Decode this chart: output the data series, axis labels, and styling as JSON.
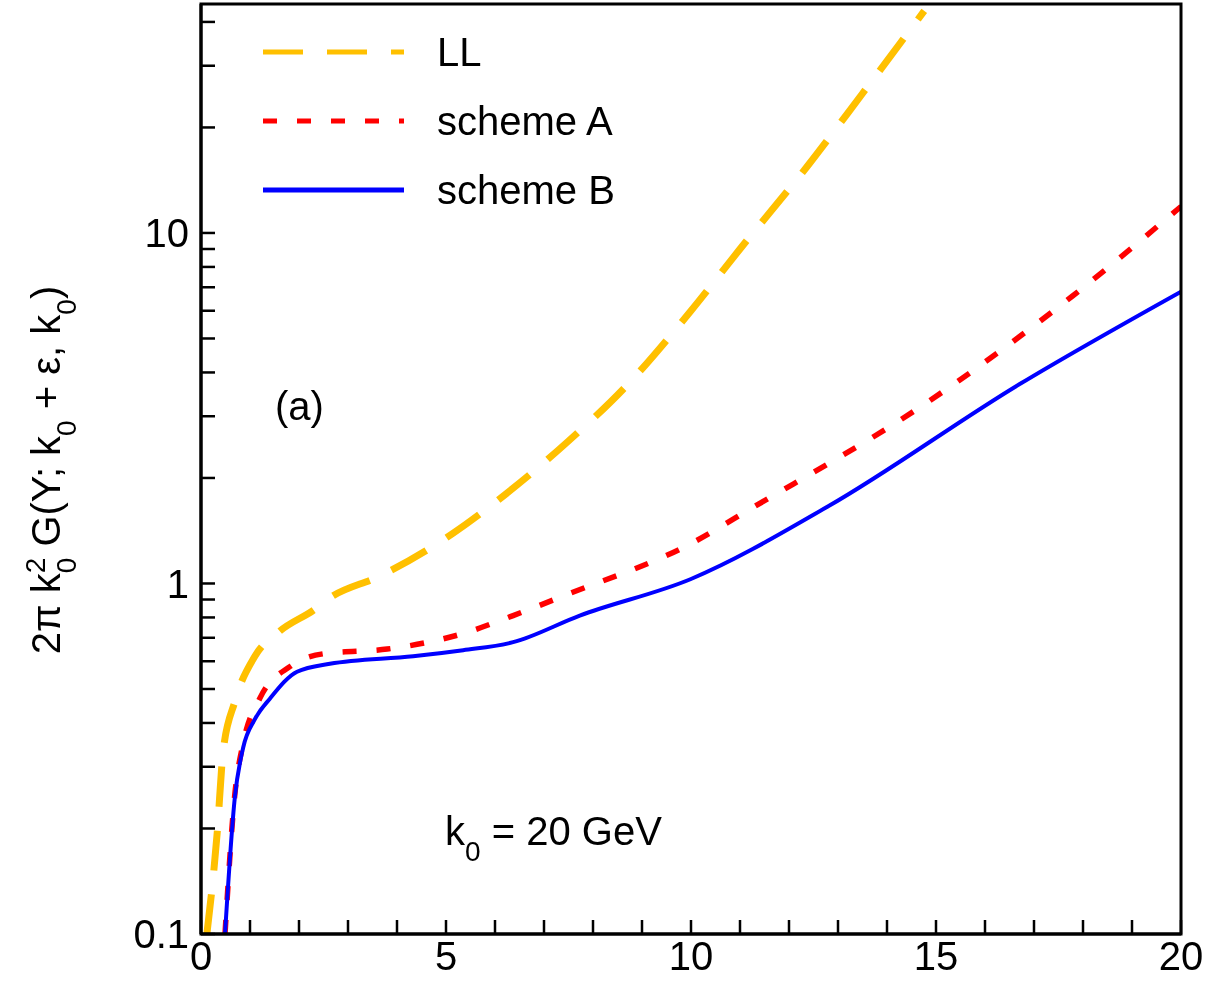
{
  "chart_data": {
    "type": "line",
    "ylabel": "2π k$_{0}$$^{2}$ G(Y; k$_{0}$ + ε, k$_{0}$)",
    "log": "y",
    "xlim": [
      0,
      20
    ],
    "ylim": [
      0.1,
      45
    ],
    "xticks": [
      0,
      {
        "value": 1,
        "label": null
      },
      {
        "value": 2,
        "label": null
      },
      {
        "value": 3,
        "label": null
      },
      {
        "value": 4,
        "label": null
      },
      5,
      {
        "value": 6,
        "label": null
      },
      {
        "value": 7,
        "label": null
      },
      {
        "value": 8,
        "label": null
      },
      {
        "value": 9,
        "label": null
      },
      10,
      {
        "value": 11,
        "label": null
      },
      {
        "value": 12,
        "label": null
      },
      {
        "value": 13,
        "label": null
      },
      {
        "value": 14,
        "label": null
      },
      15,
      {
        "value": 16,
        "label": null
      },
      {
        "value": 17,
        "label": null
      },
      {
        "value": 18,
        "label": null
      },
      {
        "value": 19,
        "label": null
      },
      20
    ],
    "yticks": [
      0.1,
      {
        "value": 0.2,
        "label": null
      },
      {
        "value": 0.3,
        "label": null
      },
      {
        "value": 0.4,
        "label": null
      },
      {
        "value": 0.5,
        "label": null
      },
      {
        "value": 0.6,
        "label": null
      },
      {
        "value": 0.7,
        "label": null
      },
      {
        "value": 0.8,
        "label": null
      },
      {
        "value": 0.9,
        "label": null
      },
      1,
      {
        "value": 2,
        "label": null
      },
      {
        "value": 3,
        "label": null
      },
      {
        "value": 4,
        "label": null
      },
      {
        "value": 5,
        "label": null
      },
      {
        "value": 6,
        "label": null
      },
      {
        "value": 7,
        "label": null
      },
      {
        "value": 8,
        "label": null
      },
      {
        "value": 9,
        "label": null
      },
      10,
      {
        "value": 20,
        "label": null
      },
      {
        "value": 30,
        "label": null
      },
      {
        "value": 40,
        "label": null
      }
    ],
    "legend": "top left",
    "grid": false,
    "marker": "none",
    "series": [
      {
        "name": "LL",
        "color": "#ffc000",
        "line_style": "dashed",
        "x": [
          0.12,
          0.33,
          0.45,
          0.69,
          1.1,
          1.6,
          2.3,
          2.63,
          3.65,
          5.14,
          6.04,
          7.5,
          8.63,
          10,
          11,
          12.39,
          13.5,
          14.76
        ],
        "values": [
          0.1,
          0.194,
          0.33,
          0.46,
          0.62,
          0.73,
          0.84,
          0.91,
          1.05,
          1.39,
          1.72,
          2.55,
          3.6,
          6.0,
          9.0,
          15.6,
          25,
          43
        ]
      },
      {
        "name": "scheme A",
        "color": "#ff0000",
        "line_style": "dotted",
        "x": [
          0.49,
          0.69,
          0.86,
          1.2,
          1.82,
          2.49,
          3.8,
          5.35,
          6.37,
          7.47,
          10,
          11.24,
          14.84,
          17.78,
          20
        ],
        "values": [
          0.1,
          0.25,
          0.35,
          0.47,
          0.58,
          0.63,
          0.65,
          0.72,
          0.81,
          0.93,
          1.3,
          1.64,
          3.3,
          6.6,
          11.9
        ]
      },
      {
        "name": "scheme B",
        "color": "#0000ff",
        "line_style": "solid",
        "x": [
          0.49,
          0.69,
          0.86,
          1.1,
          1.41,
          1.96,
          2.63,
          4.33,
          5.35,
          6.37,
          7.73,
          10,
          12.8,
          16.7,
          20
        ],
        "values": [
          0.1,
          0.245,
          0.34,
          0.41,
          0.47,
          0.56,
          0.59,
          0.62,
          0.645,
          0.68,
          0.81,
          1.03,
          1.66,
          3.7,
          6.8
        ]
      }
    ],
    "annotations": [
      "(a)",
      "k$_{0}$ = 20 GeV"
    ]
  }
}
